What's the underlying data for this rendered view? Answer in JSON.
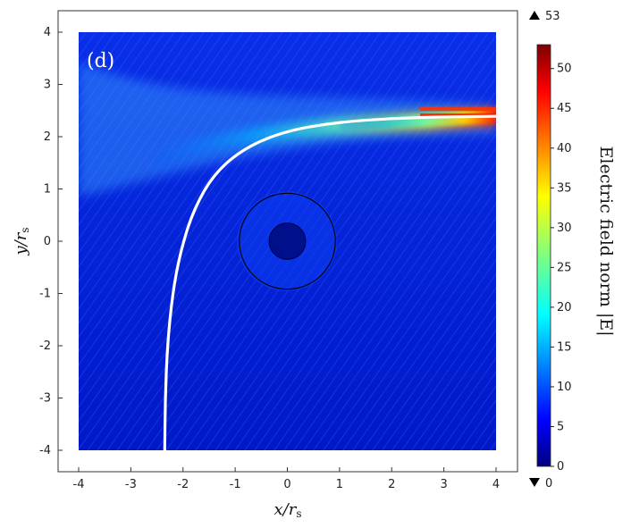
{
  "chart_data": {
    "type": "heatmap",
    "panel_label": "(d)",
    "xlabel": "x/r",
    "xlabel_sub": "s",
    "ylabel": "y/r",
    "ylabel_sub": "s",
    "xlim": [
      -4,
      4
    ],
    "ylim": [
      -4,
      4
    ],
    "x_ticks": [
      "-4",
      "-3",
      "-2",
      "-1",
      "0",
      "1",
      "2",
      "3",
      "4"
    ],
    "y_ticks": [
      "4",
      "3",
      "2",
      "1",
      "0",
      "-1",
      "-2",
      "-3",
      "-4"
    ],
    "colorbar": {
      "title": "Electric field norm |E|",
      "range": [
        0,
        53
      ],
      "ticks": [
        "0",
        "5",
        "10",
        "15",
        "20",
        "25",
        "30",
        "35",
        "40",
        "45",
        "50"
      ],
      "max_label": "53",
      "min_label": "0",
      "colormap": "jet"
    },
    "scatterer": {
      "core_radius": 0.35,
      "shell_radius": 0.92,
      "center": [
        0,
        0
      ]
    },
    "ray_path": {
      "color": "#ffffff",
      "points": [
        [
          -2.35,
          -4.0
        ],
        [
          -2.34,
          -3.0
        ],
        [
          -2.3,
          -2.0
        ],
        [
          -2.2,
          -1.0
        ],
        [
          -2.05,
          -0.2
        ],
        [
          -1.8,
          0.6
        ],
        [
          -1.4,
          1.3
        ],
        [
          -0.8,
          1.8
        ],
        [
          0.0,
          2.12
        ],
        [
          1.0,
          2.28
        ],
        [
          2.0,
          2.35
        ],
        [
          3.0,
          2.38
        ],
        [
          4.0,
          2.39
        ]
      ]
    }
  }
}
